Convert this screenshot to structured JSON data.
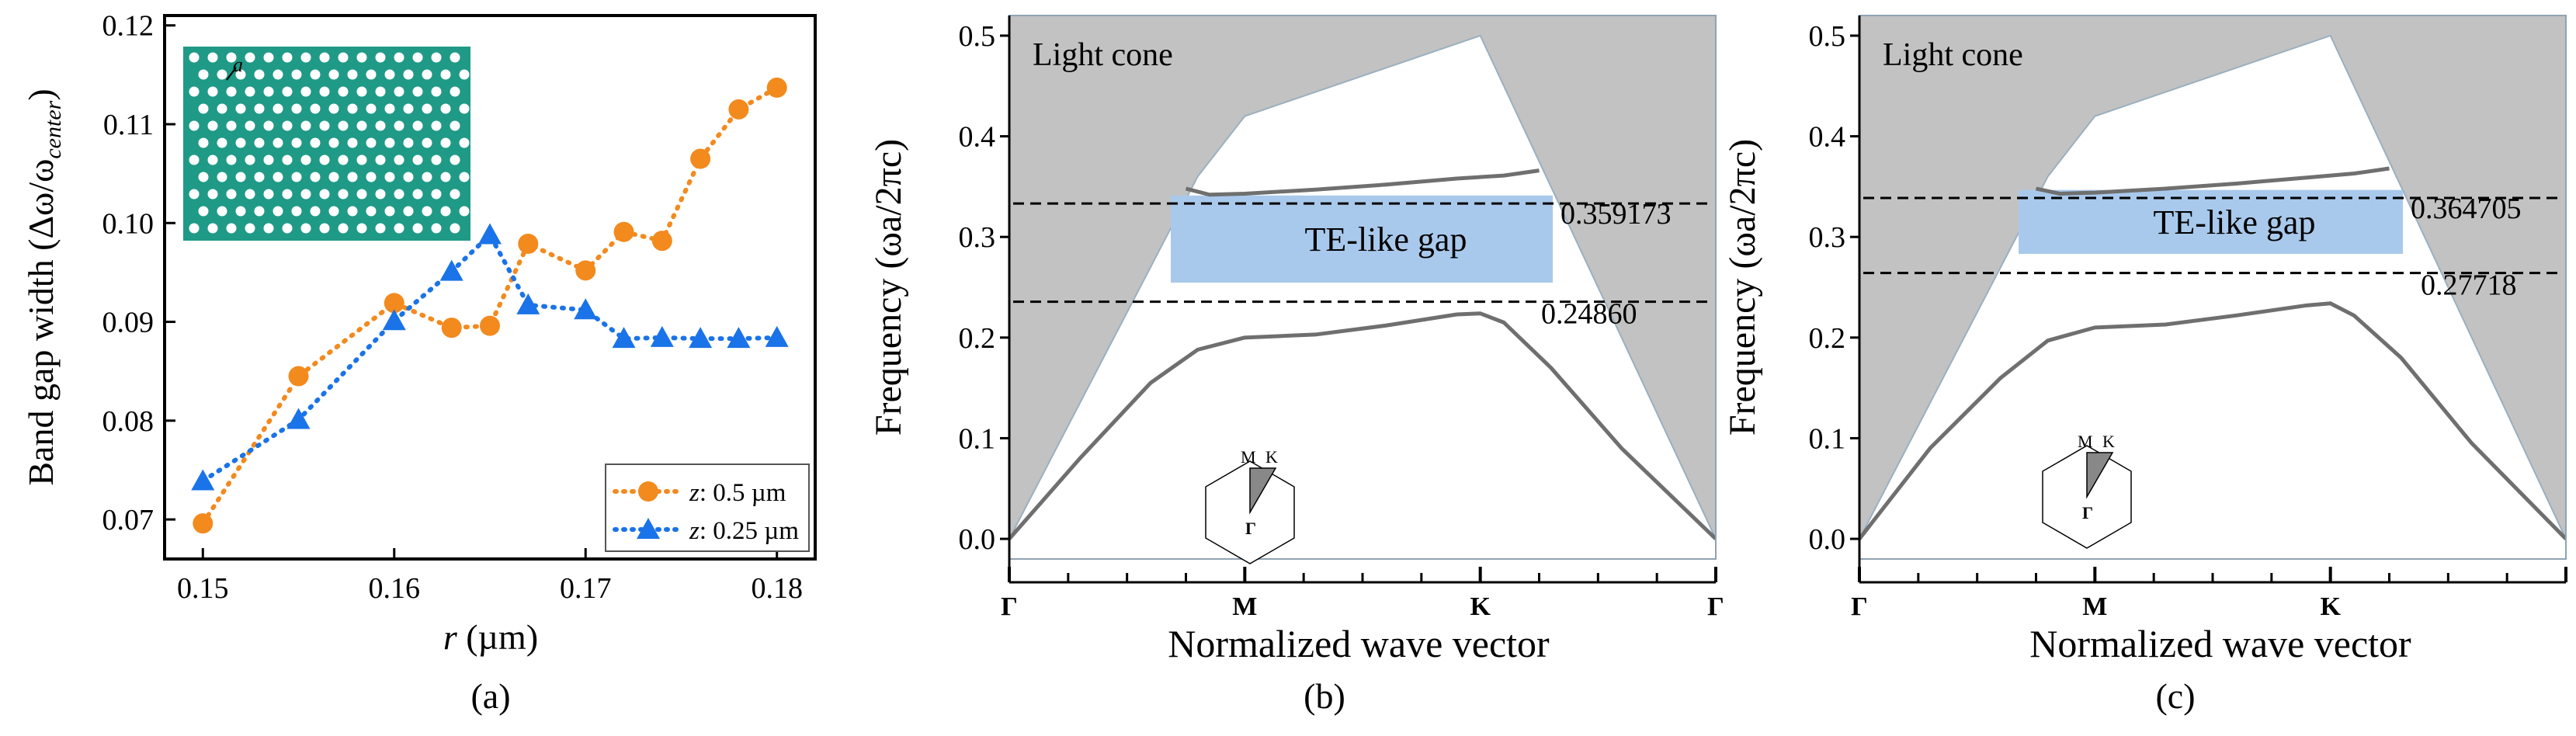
{
  "colors": {
    "orange": "#f28a1e",
    "blue": "#1a73e8",
    "gray_fill": "#c2c2c2",
    "band": "#6f6f6f",
    "gap_fill": "#a9c9ec",
    "teal": "#1f9a86"
  },
  "chart_data": [
    {
      "type": "line",
      "panel_label": "(a)",
      "xlabel_var": "r",
      "xlabel_unit": " (µm)",
      "ylabel": "Band gap width (Δω/ω",
      "ylabel_sub": "center",
      "ylabel_close": ")",
      "xlim": [
        0.148,
        0.182
      ],
      "ylim": [
        0.066,
        0.121
      ],
      "xticks": [
        0.15,
        0.16,
        0.17,
        0.18
      ],
      "xtick_labels": [
        "0.15",
        "0.16",
        "0.17",
        "0.18"
      ],
      "yticks": [
        0.07,
        0.08,
        0.09,
        0.1,
        0.11,
        0.12
      ],
      "ytick_labels": [
        "0.07",
        "0.08",
        "0.09",
        "0.10",
        "0.11",
        "0.12"
      ],
      "inset_label": "a",
      "series": [
        {
          "name": "z: 0.5 µm",
          "legend_var": "z",
          "legend_text": ": 0.5 µm",
          "marker": "circle",
          "x": [
            0.15,
            0.155,
            0.16,
            0.163,
            0.165,
            0.167,
            0.17,
            0.172,
            0.174,
            0.176,
            0.178,
            0.18
          ],
          "y": [
            0.0696,
            0.0845,
            0.0919,
            0.0894,
            0.0896,
            0.0979,
            0.0952,
            0.0991,
            0.0982,
            0.1065,
            0.1115,
            0.1137
          ]
        },
        {
          "name": "z: 0.25 µm",
          "legend_var": "z",
          "legend_text": ": 0.25 µm",
          "marker": "triangle",
          "x": [
            0.15,
            0.155,
            0.16,
            0.163,
            0.165,
            0.167,
            0.17,
            0.172,
            0.174,
            0.176,
            0.178,
            0.18
          ],
          "y": [
            0.0739,
            0.0801,
            0.0901,
            0.0951,
            0.0988,
            0.0917,
            0.0912,
            0.0883,
            0.0884,
            0.0883,
            0.0883,
            0.0884
          ]
        }
      ]
    },
    {
      "type": "area",
      "panel_label": "(b)",
      "xlabel": "Normalized wave vector",
      "ylabel": "Frequency (ωa/2πc)",
      "ylim": [
        -0.02,
        0.52
      ],
      "yticks": [
        0.0,
        0.1,
        0.2,
        0.3,
        0.4,
        0.5
      ],
      "ytick_labels": [
        "0.0",
        "0.1",
        "0.2",
        "0.3",
        "0.4",
        "0.5"
      ],
      "xticks": [
        0,
        1,
        2,
        3
      ],
      "xtick_labels": [
        "Γ",
        "M",
        "K",
        "Γ"
      ],
      "light_cone_label": "Light cone",
      "gap_label": "TE-like gap",
      "gap_top": 0.359173,
      "gap_bottom": 0.2486,
      "gap_top_label": "0.359173",
      "gap_bottom_label": "0.24860",
      "light_line": {
        "x": [
          0,
          0.8,
          1.0,
          2.0,
          3.0
        ],
        "y": [
          0,
          0.36,
          0.42,
          0.5,
          0
        ]
      },
      "lower_band": {
        "x": [
          0,
          0.3,
          0.6,
          0.8,
          1.0,
          1.3,
          1.6,
          1.9,
          2.0,
          2.1,
          2.3,
          2.6,
          3.0
        ],
        "y": [
          0,
          0.08,
          0.155,
          0.188,
          0.2,
          0.203,
          0.212,
          0.223,
          0.224,
          0.215,
          0.17,
          0.09,
          0
        ]
      },
      "upper_band": {
        "x": [
          0.75,
          0.85,
          1.0,
          1.3,
          1.6,
          1.9,
          2.1,
          2.25
        ],
        "y": [
          0.348,
          0.342,
          0.343,
          0.347,
          0.352,
          0.358,
          0.361,
          0.366
        ]
      },
      "bz_labels": [
        "M",
        "K",
        "Γ"
      ]
    },
    {
      "type": "area",
      "panel_label": "(c)",
      "xlabel": "Normalized wave vector",
      "ylabel": "Frequency (ωa/2πc)",
      "ylim": [
        -0.02,
        0.52
      ],
      "yticks": [
        0.0,
        0.1,
        0.2,
        0.3,
        0.4,
        0.5
      ],
      "ytick_labels": [
        "0.0",
        "0.1",
        "0.2",
        "0.3",
        "0.4",
        "0.5"
      ],
      "xticks": [
        0,
        1,
        2,
        3
      ],
      "xtick_labels": [
        "Γ",
        "M",
        "K",
        ""
      ],
      "light_cone_label": "Light cone",
      "gap_label": "TE-like gap",
      "gap_top": 0.364705,
      "gap_bottom": 0.27718,
      "gap_top_label": "0.364705",
      "gap_bottom_label": "0.27718",
      "light_line": {
        "x": [
          0,
          0.8,
          1.0,
          2.0,
          3.0
        ],
        "y": [
          0,
          0.36,
          0.42,
          0.5,
          0
        ]
      },
      "lower_band": {
        "x": [
          0,
          0.3,
          0.6,
          0.8,
          1.0,
          1.3,
          1.6,
          1.9,
          2.0,
          2.1,
          2.3,
          2.6,
          3.0
        ],
        "y": [
          0,
          0.09,
          0.16,
          0.197,
          0.21,
          0.213,
          0.222,
          0.232,
          0.234,
          0.222,
          0.18,
          0.095,
          0
        ]
      },
      "upper_band": {
        "x": [
          0.75,
          0.85,
          1.0,
          1.3,
          1.6,
          1.9,
          2.1,
          2.25
        ],
        "y": [
          0.348,
          0.343,
          0.344,
          0.348,
          0.353,
          0.359,
          0.363,
          0.368
        ]
      },
      "bz_labels": [
        "M",
        "K",
        "Γ"
      ]
    }
  ]
}
